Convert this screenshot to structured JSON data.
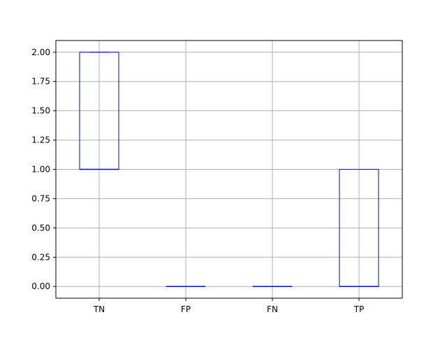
{
  "chart_data": {
    "type": "box",
    "categories": [
      "TN",
      "FP",
      "FN",
      "TP"
    ],
    "boxes": [
      {
        "category": "TN",
        "whisker_low": 1,
        "q1": 1,
        "median": 1,
        "q3": 2,
        "whisker_high": 2
      },
      {
        "category": "FP",
        "whisker_low": 0,
        "q1": 0,
        "median": 0,
        "q3": 0,
        "whisker_high": 0
      },
      {
        "category": "FN",
        "whisker_low": 0,
        "q1": 0,
        "median": 0,
        "q3": 0,
        "whisker_high": 0
      },
      {
        "category": "TP",
        "whisker_low": 0,
        "q1": 0,
        "median": 0,
        "q3": 1,
        "whisker_high": 1
      }
    ],
    "yticks": [
      "0.00",
      "0.25",
      "0.50",
      "0.75",
      "1.00",
      "1.25",
      "1.50",
      "1.75",
      "2.00"
    ],
    "ylim": [
      -0.1,
      2.1
    ],
    "grid": true,
    "box_color": "#0000ff",
    "title": "",
    "xlabel": "",
    "ylabel": ""
  }
}
